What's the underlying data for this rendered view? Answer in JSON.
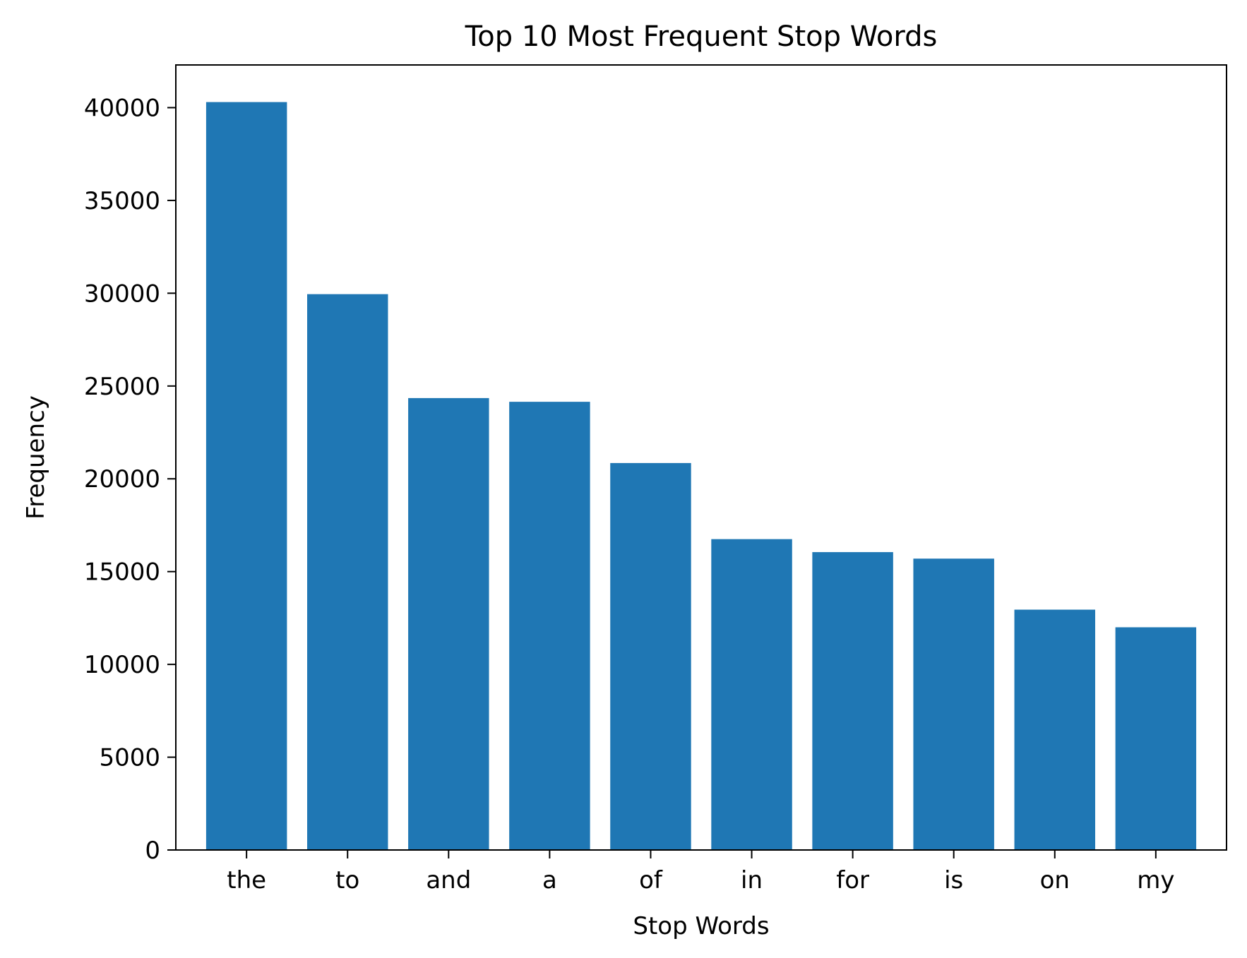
{
  "chart_data": {
    "type": "bar",
    "title": "Top 10 Most Frequent Stop Words",
    "xlabel": "Stop Words",
    "ylabel": "Frequency",
    "categories": [
      "the",
      "to",
      "and",
      "a",
      "of",
      "in",
      "for",
      "is",
      "on",
      "my"
    ],
    "values": [
      40300,
      29950,
      24350,
      24150,
      20850,
      16750,
      16050,
      15700,
      12950,
      12000
    ],
    "ylim": [
      0,
      42300
    ],
    "yticks": [
      0,
      5000,
      10000,
      15000,
      20000,
      25000,
      30000,
      35000,
      40000
    ],
    "ytick_labels": [
      "0",
      "5000",
      "10000",
      "15000",
      "20000",
      "25000",
      "30000",
      "35000",
      "40000"
    ],
    "grid": false,
    "legend": "none",
    "bar_color": "#1f77b4"
  }
}
